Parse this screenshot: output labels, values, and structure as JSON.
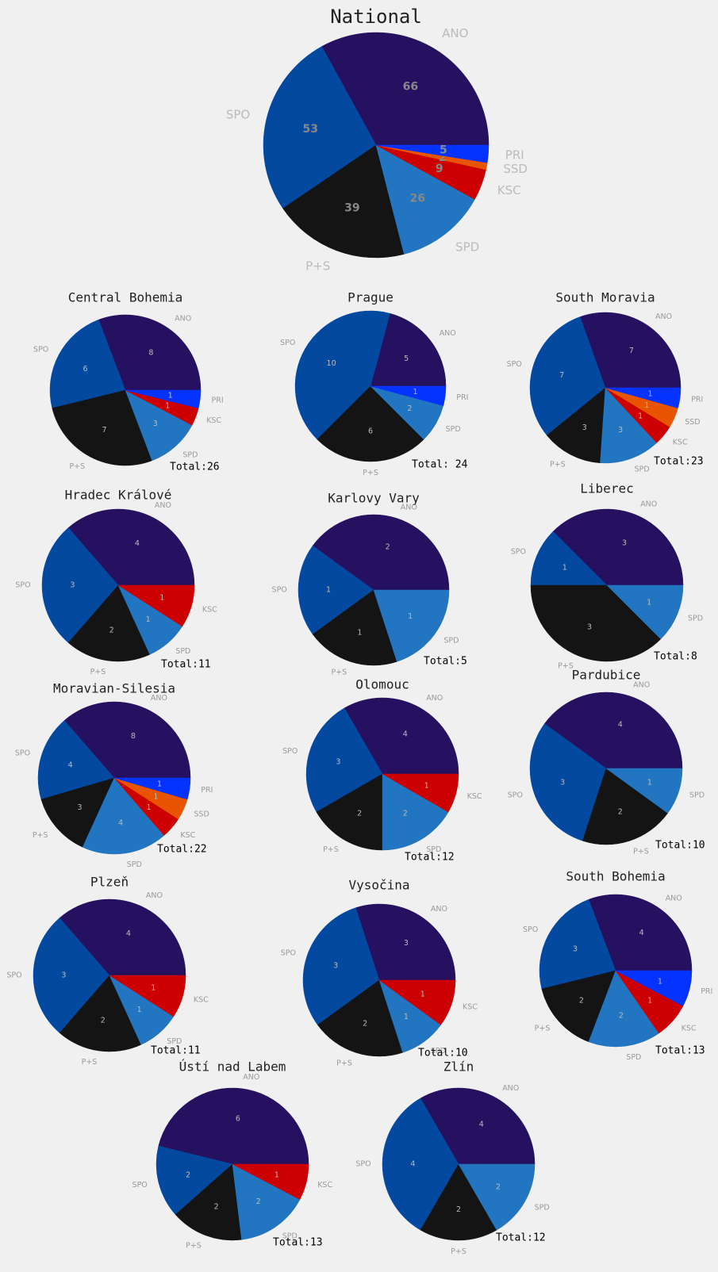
{
  "colors": {
    "ANO": "#261060",
    "SPO": "#0449a0",
    "P+S": "#141414",
    "SPD": "#2275c0",
    "KSC": "#cc0000",
    "SSD": "#e85400",
    "PRI": "#0433ff",
    "background": "#f0f0f0",
    "label": "#999999",
    "value": "#bbbbbb"
  },
  "chart_data": [
    {
      "type": "pie",
      "title": "National",
      "total_label": "",
      "slices": [
        {
          "label": "ANO",
          "value": 66
        },
        {
          "label": "SPO",
          "value": 53
        },
        {
          "label": "P+S",
          "value": 39
        },
        {
          "label": "SPD",
          "value": 26
        },
        {
          "label": "KSC",
          "value": 9
        },
        {
          "label": "SSD",
          "value": 2
        },
        {
          "label": "PRI",
          "value": 5
        }
      ]
    },
    {
      "type": "pie",
      "title": "Central Bohemia",
      "total_label": "Total:26",
      "slices": [
        {
          "label": "ANO",
          "value": 8
        },
        {
          "label": "SPO",
          "value": 6
        },
        {
          "label": "P+S",
          "value": 7
        },
        {
          "label": "SPD",
          "value": 3
        },
        {
          "label": "KSC",
          "value": 1
        },
        {
          "label": "PRI",
          "value": 1
        }
      ]
    },
    {
      "type": "pie",
      "title": "Prague",
      "total_label": "Total: 24",
      "slices": [
        {
          "label": "ANO",
          "value": 5
        },
        {
          "label": "SPO",
          "value": 10
        },
        {
          "label": "P+S",
          "value": 6
        },
        {
          "label": "SPD",
          "value": 2
        },
        {
          "label": "PRI",
          "value": 1
        }
      ]
    },
    {
      "type": "pie",
      "title": "South Moravia",
      "total_label": "Total:23",
      "slices": [
        {
          "label": "ANO",
          "value": 7
        },
        {
          "label": "SPO",
          "value": 7
        },
        {
          "label": "P+S",
          "value": 3
        },
        {
          "label": "SPD",
          "value": 3
        },
        {
          "label": "KSC",
          "value": 1
        },
        {
          "label": "SSD",
          "value": 1
        },
        {
          "label": "PRI",
          "value": 1
        }
      ]
    },
    {
      "type": "pie",
      "title": "Hradec Králové",
      "total_label": "Total:11",
      "slices": [
        {
          "label": "ANO",
          "value": 4
        },
        {
          "label": "SPO",
          "value": 3
        },
        {
          "label": "P+S",
          "value": 2
        },
        {
          "label": "SPD",
          "value": 1
        },
        {
          "label": "KSC",
          "value": 1
        }
      ]
    },
    {
      "type": "pie",
      "title": "Karlovy Vary",
      "total_label": "Total:5",
      "slices": [
        {
          "label": "ANO",
          "value": 2
        },
        {
          "label": "SPO",
          "value": 1
        },
        {
          "label": "P+S",
          "value": 1
        },
        {
          "label": "SPD",
          "value": 1
        }
      ]
    },
    {
      "type": "pie",
      "title": "Liberec",
      "total_label": "Total:8",
      "slices": [
        {
          "label": "ANO",
          "value": 3
        },
        {
          "label": "SPO",
          "value": 1
        },
        {
          "label": "P+S",
          "value": 3
        },
        {
          "label": "SPD",
          "value": 1
        }
      ]
    },
    {
      "type": "pie",
      "title": "Moravian-Silesia",
      "total_label": "Total:22",
      "slices": [
        {
          "label": "ANO",
          "value": 8
        },
        {
          "label": "SPO",
          "value": 4
        },
        {
          "label": "P+S",
          "value": 3
        },
        {
          "label": "SPD",
          "value": 4
        },
        {
          "label": "KSC",
          "value": 1
        },
        {
          "label": "SSD",
          "value": 1
        },
        {
          "label": "PRI",
          "value": 1
        }
      ]
    },
    {
      "type": "pie",
      "title": "Olomouc",
      "total_label": "Total:12",
      "slices": [
        {
          "label": "ANO",
          "value": 4
        },
        {
          "label": "SPO",
          "value": 3
        },
        {
          "label": "P+S",
          "value": 2
        },
        {
          "label": "SPD",
          "value": 2
        },
        {
          "label": "KSC",
          "value": 1
        }
      ]
    },
    {
      "type": "pie",
      "title": "Pardubice",
      "total_label": "Total:10",
      "slices": [
        {
          "label": "ANO",
          "value": 4
        },
        {
          "label": "SPO",
          "value": 3
        },
        {
          "label": "P+S",
          "value": 2
        },
        {
          "label": "SPD",
          "value": 1
        }
      ]
    },
    {
      "type": "pie",
      "title": "Plzeň",
      "total_label": "Total:11",
      "slices": [
        {
          "label": "ANO",
          "value": 4
        },
        {
          "label": "SPO",
          "value": 3
        },
        {
          "label": "P+S",
          "value": 2
        },
        {
          "label": "SPD",
          "value": 1
        },
        {
          "label": "KSC",
          "value": 1
        }
      ]
    },
    {
      "type": "pie",
      "title": "Vysočina",
      "total_label": "Total:10",
      "slices": [
        {
          "label": "ANO",
          "value": 3
        },
        {
          "label": "SPO",
          "value": 3
        },
        {
          "label": "P+S",
          "value": 2
        },
        {
          "label": "SPD",
          "value": 1
        },
        {
          "label": "KSC",
          "value": 1
        }
      ]
    },
    {
      "type": "pie",
      "title": "South Bohemia",
      "total_label": "Total:13",
      "slices": [
        {
          "label": "ANO",
          "value": 4
        },
        {
          "label": "SPO",
          "value": 3
        },
        {
          "label": "P+S",
          "value": 2
        },
        {
          "label": "SPD",
          "value": 2
        },
        {
          "label": "KSC",
          "value": 1
        },
        {
          "label": "PRI",
          "value": 1
        }
      ]
    },
    {
      "type": "pie",
      "title": "Ústí nad Labem",
      "total_label": "Total:13",
      "slices": [
        {
          "label": "ANO",
          "value": 6
        },
        {
          "label": "SPO",
          "value": 2
        },
        {
          "label": "P+S",
          "value": 2
        },
        {
          "label": "SPD",
          "value": 2
        },
        {
          "label": "KSC",
          "value": 1
        }
      ]
    },
    {
      "type": "pie",
      "title": "Zlín",
      "total_label": "Total:12",
      "slices": [
        {
          "label": "ANO",
          "value": 4
        },
        {
          "label": "SPO",
          "value": 4
        },
        {
          "label": "P+S",
          "value": 2
        },
        {
          "label": "SPD",
          "value": 2
        }
      ]
    }
  ]
}
